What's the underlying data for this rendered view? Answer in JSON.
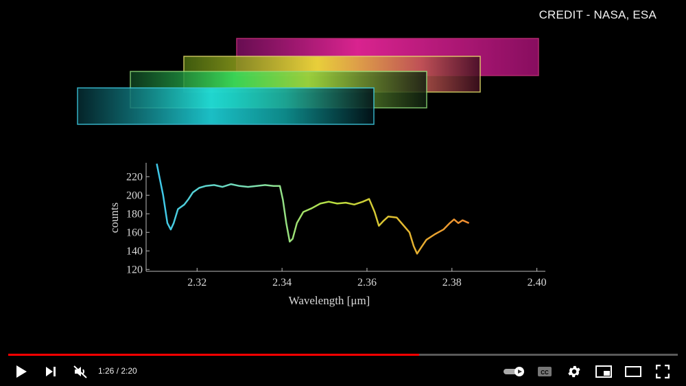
{
  "overlay": {
    "credit": "CREDIT - NASA, ESA"
  },
  "player": {
    "time_current": "1:26",
    "time_total": "2:20",
    "time_sep": " / ",
    "progress": 0.614,
    "colors": {
      "played": "#ff0000",
      "track": "#888888"
    },
    "icons": [
      "play-icon",
      "next-icon",
      "mute-icon",
      "autoplay-toggle-icon",
      "subtitles-icon",
      "settings-icon",
      "miniplayer-icon",
      "theater-icon",
      "fullscreen-icon"
    ]
  },
  "spectrum_bars": [
    {
      "color": "#ff2aa8"
    },
    {
      "color": "#e6e06a"
    },
    {
      "color": "#8fe07a"
    },
    {
      "color": "#3fd0e8"
    }
  ],
  "chart_data": {
    "type": "line",
    "title": "",
    "xlabel": "Wavelength [μm]",
    "ylabel": "counts",
    "xlim": [
      2.308,
      2.402
    ],
    "ylim": [
      118,
      235
    ],
    "xticks": [
      "2.32",
      "2.34",
      "2.36",
      "2.38",
      "2.40"
    ],
    "xtick_values": [
      2.32,
      2.34,
      2.36,
      2.38,
      2.4
    ],
    "yticks": [
      "120",
      "140",
      "160",
      "180",
      "200",
      "220"
    ],
    "ytick_values": [
      120,
      140,
      160,
      180,
      200,
      220
    ],
    "grid": false,
    "series": [
      {
        "x": [
          2.3105,
          2.312,
          2.313,
          2.3138,
          2.3145,
          2.3155,
          2.317,
          2.318,
          2.319,
          2.3205,
          2.322,
          2.324,
          2.326,
          2.328,
          2.33,
          2.332,
          2.334,
          2.336,
          2.338,
          2.3395,
          2.3402,
          2.341,
          2.3418,
          2.3425,
          2.3435,
          2.345,
          2.347,
          2.349,
          2.351,
          2.353,
          2.355,
          2.357,
          2.359,
          2.3605,
          2.3618,
          2.3628,
          2.3638,
          2.365,
          2.367,
          2.3685,
          2.37,
          2.371,
          2.3718,
          2.3728,
          2.374,
          2.376,
          2.378,
          2.3795,
          2.3805,
          2.3815,
          2.3825,
          2.384
        ],
        "y": [
          234,
          200,
          170,
          163,
          170,
          185,
          190,
          196,
          203,
          208,
          210,
          211,
          209,
          212,
          210,
          209,
          210,
          211,
          210,
          210,
          195,
          170,
          150,
          153,
          170,
          182,
          186,
          191,
          193,
          191,
          192,
          190,
          193,
          196,
          182,
          167,
          172,
          177,
          176,
          168,
          160,
          145,
          137,
          144,
          152,
          158,
          163,
          170,
          174,
          170,
          173,
          170
        ]
      }
    ]
  }
}
